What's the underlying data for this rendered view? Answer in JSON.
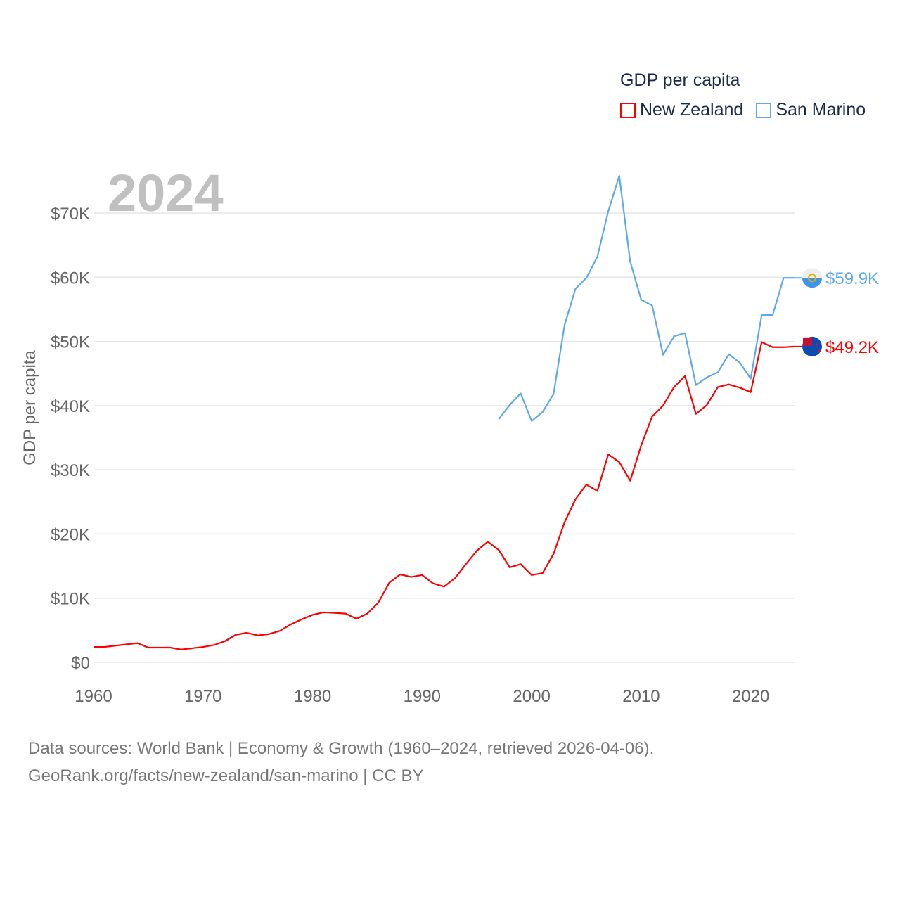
{
  "chart_data": {
    "type": "line",
    "title": "GDP per capita",
    "year_label": "2024",
    "xlabel": "",
    "ylabel": "GDP per capita",
    "xlim": [
      1960,
      2024
    ],
    "ylim": [
      0,
      70000
    ],
    "x_ticks": [
      1960,
      1970,
      1980,
      1990,
      2000,
      2010,
      2020
    ],
    "x_tick_labels": [
      "1960",
      "1970",
      "1980",
      "1990",
      "2000",
      "2010",
      "2020"
    ],
    "y_ticks": [
      0,
      10000,
      20000,
      30000,
      40000,
      50000,
      60000,
      70000
    ],
    "y_tick_labels": [
      "$0",
      "$10K",
      "$20K",
      "$30K",
      "$40K",
      "$50K",
      "$60K",
      "$70K"
    ],
    "grid": true,
    "legend_position": "top-right",
    "series": [
      {
        "name": "New Zealand",
        "color": "#ff0000",
        "end_label": "$49.2K",
        "flag_icon": "new-zealand-flag-icon",
        "x": [
          1960,
          1961,
          1962,
          1963,
          1964,
          1965,
          1966,
          1967,
          1968,
          1969,
          1970,
          1971,
          1972,
          1973,
          1974,
          1975,
          1976,
          1977,
          1978,
          1979,
          1980,
          1981,
          1982,
          1983,
          1984,
          1985,
          1986,
          1987,
          1988,
          1989,
          1990,
          1991,
          1992,
          1993,
          1994,
          1995,
          1996,
          1997,
          1998,
          1999,
          2000,
          2001,
          2002,
          2003,
          2004,
          2005,
          2006,
          2007,
          2008,
          2009,
          2010,
          2011,
          2012,
          2013,
          2014,
          2015,
          2016,
          2017,
          2018,
          2019,
          2020,
          2021,
          2022,
          2023,
          2024
        ],
        "values": [
          2400,
          2400,
          2600,
          2800,
          3000,
          2300,
          2300,
          2300,
          2000,
          2200,
          2400,
          2700,
          3300,
          4300,
          4600,
          4200,
          4400,
          4900,
          5900,
          6700,
          7400,
          7800,
          7700,
          7600,
          6800,
          7600,
          9300,
          12400,
          13700,
          13300,
          13600,
          12300,
          11800,
          13100,
          15300,
          17400,
          18800,
          17500,
          14800,
          15300,
          13600,
          13900,
          16900,
          21800,
          25400,
          27700,
          26700,
          32400,
          31200,
          28300,
          33800,
          38300,
          40000,
          42900,
          44600,
          38700,
          40100,
          42900,
          43300,
          42800,
          42100,
          49900,
          49100,
          49100,
          49200
        ]
      },
      {
        "name": "San Marino",
        "color": "#5ea8ec",
        "end_label": "$59.9K",
        "flag_icon": "san-marino-flag-icon",
        "x": [
          1997,
          1998,
          1999,
          2000,
          2001,
          2002,
          2003,
          2004,
          2005,
          2006,
          2007,
          2008,
          2009,
          2010,
          2011,
          2012,
          2013,
          2014,
          2015,
          2016,
          2017,
          2018,
          2019,
          2020,
          2021,
          2022,
          2023,
          2024
        ],
        "values": [
          37900,
          40100,
          41900,
          37600,
          39000,
          41800,
          52500,
          58200,
          59900,
          63200,
          70300,
          75800,
          62400,
          56500,
          55600,
          47900,
          50800,
          51300,
          43200,
          44400,
          45200,
          48000,
          46700,
          44200,
          54100,
          54100,
          59900,
          59900
        ]
      }
    ]
  },
  "footer": {
    "line1": "Data sources: World Bank | Economy & Growth (1960–2024, retrieved 2026-04-06).",
    "line2": "GeoRank.org/facts/new-zealand/san-marino | CC BY"
  }
}
